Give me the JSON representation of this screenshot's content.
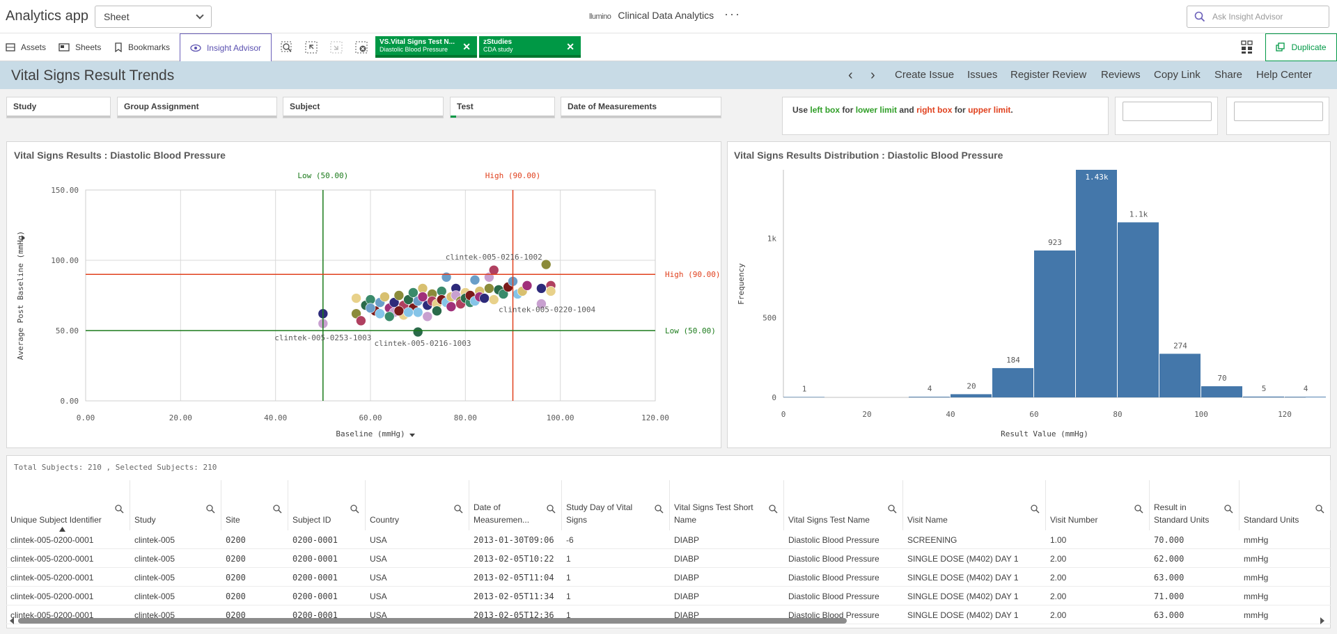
{
  "app": {
    "title": "Analytics app",
    "sheet_select": "Sheet",
    "logo_text": "llumino",
    "center_title": "Clinical Data Analytics",
    "more": "···",
    "ask_placeholder": "Ask Insight Advisor"
  },
  "toolbar": {
    "assets": "Assets",
    "sheets": "Sheets",
    "bookmarks": "Bookmarks",
    "insight_advisor": "Insight Advisor",
    "duplicate": "Duplicate",
    "chips": [
      {
        "title": "VS.Vital Signs Test N...",
        "value": "Diastolic Blood Pressure"
      },
      {
        "title": "zStudies",
        "value": "CDA study"
      }
    ]
  },
  "header": {
    "title": "Vital Signs Result Trends",
    "prev": "‹",
    "next": "›",
    "links": [
      "Create Issue",
      "Issues",
      "Register Review",
      "Reviews",
      "Copy Link",
      "Share",
      "Help Center"
    ]
  },
  "filters": [
    "Study",
    "Group Assignment",
    "Subject",
    "Test",
    "Date of Measurements"
  ],
  "hint": {
    "p1": "Use ",
    "left": "left box",
    "p2": " for ",
    "lower": "lower limit",
    "p3": " and ",
    "right": "right box",
    "p4": " for ",
    "upper": "upper limit",
    "p5": "."
  },
  "scatter": {
    "title": "Vital Signs Results : Diastolic Blood Pressure",
    "xlabel": "Baseline (mmHg)",
    "ylabel": "Average Post Baseline (mmHg)",
    "xticks": [
      "0.00",
      "20.00",
      "40.00",
      "60.00",
      "80.00",
      "100.00",
      "120.00"
    ],
    "yticks": [
      "0.00",
      "50.00",
      "100.00",
      "150.00"
    ],
    "ref_low_v": "Low (50.00)",
    "ref_high_v": "High (90.00)",
    "ref_high_h": "High (90.00)",
    "ref_low_h": "Low (50.00)",
    "annotations": [
      "clintek-005-0216-1002",
      "clintek-005-0220-1004",
      "clintek-005-0253-1003",
      "clintek-005-0216-1003"
    ]
  },
  "histogram": {
    "title": "Vital Signs Results Distribution : Diastolic Blood Pressure",
    "xlabel": "Result Value (mmHg)",
    "ylabel": "Frequency",
    "xticks": [
      "0",
      "20",
      "40",
      "60",
      "80",
      "100",
      "120"
    ],
    "yticks": [
      "0",
      "500",
      "1k"
    ],
    "bar_labels": [
      "1",
      "4",
      "20",
      "184",
      "923",
      "1.43k",
      "1.1k",
      "274",
      "70",
      "5",
      "4"
    ]
  },
  "chart_data": [
    {
      "type": "scatter",
      "title": "Vital Signs Results : Diastolic Blood Pressure",
      "xlabel": "Baseline (mmHg)",
      "ylabel": "Average Post Baseline (mmHg)",
      "xlim": [
        0,
        120
      ],
      "ylim": [
        0,
        150
      ],
      "reference_lines": {
        "x": [
          50,
          90
        ],
        "y": [
          50,
          90
        ]
      },
      "points": [
        [
          50,
          62
        ],
        [
          50,
          55
        ],
        [
          57,
          62
        ],
        [
          58,
          57
        ],
        [
          57,
          73
        ],
        [
          59,
          68
        ],
        [
          60,
          72
        ],
        [
          61,
          64
        ],
        [
          62,
          70
        ],
        [
          62,
          62
        ],
        [
          63,
          74
        ],
        [
          64,
          66
        ],
        [
          65,
          70
        ],
        [
          65,
          63
        ],
        [
          66,
          75
        ],
        [
          67,
          68
        ],
        [
          67,
          61
        ],
        [
          68,
          72
        ],
        [
          69,
          77
        ],
        [
          69,
          66
        ],
        [
          70,
          71
        ],
        [
          70,
          63
        ],
        [
          71,
          80
        ],
        [
          71,
          74
        ],
        [
          72,
          68
        ],
        [
          72,
          60
        ],
        [
          73,
          76
        ],
        [
          73,
          71
        ],
        [
          74,
          69
        ],
        [
          74,
          64
        ],
        [
          75,
          78
        ],
        [
          75,
          72
        ],
        [
          76,
          88
        ],
        [
          76,
          70
        ],
        [
          77,
          74
        ],
        [
          77,
          67
        ],
        [
          78,
          80
        ],
        [
          78,
          75
        ],
        [
          79,
          71
        ],
        [
          79,
          69
        ],
        [
          80,
          77
        ],
        [
          80,
          73
        ],
        [
          81,
          70
        ],
        [
          81,
          75
        ],
        [
          82,
          86
        ],
        [
          82,
          71
        ],
        [
          83,
          78
        ],
        [
          83,
          74
        ],
        [
          84,
          73
        ],
        [
          85,
          88
        ],
        [
          85,
          80
        ],
        [
          86,
          93
        ],
        [
          86,
          72
        ],
        [
          87,
          79
        ],
        [
          88,
          76
        ],
        [
          89,
          81
        ],
        [
          90,
          85
        ],
        [
          91,
          76
        ],
        [
          92,
          78
        ],
        [
          93,
          82
        ],
        [
          96,
          80
        ],
        [
          96,
          69
        ],
        [
          97,
          97
        ],
        [
          98,
          82
        ],
        [
          98,
          78
        ],
        [
          70,
          49
        ],
        [
          64,
          60
        ],
        [
          66,
          64
        ],
        [
          60,
          66
        ],
        [
          68,
          63
        ]
      ]
    },
    {
      "type": "bar",
      "title": "Vital Signs Results Distribution : Diastolic Blood Pressure",
      "xlabel": "Result Value (mmHg)",
      "ylabel": "Frequency",
      "xlim": [
        0,
        120
      ],
      "ylim": [
        0,
        1430
      ],
      "bins": [
        [
          0,
          10
        ],
        [
          30,
          40
        ],
        [
          40,
          50
        ],
        [
          50,
          60
        ],
        [
          60,
          70
        ],
        [
          70,
          80
        ],
        [
          80,
          90
        ],
        [
          90,
          100
        ],
        [
          100,
          110
        ],
        [
          110,
          120
        ],
        [
          120,
          130
        ]
      ],
      "values": [
        1,
        4,
        20,
        184,
        923,
        1430,
        1100,
        274,
        70,
        5,
        4
      ]
    }
  ],
  "table": {
    "summary": "Total Subjects: 210 , Selected Subjects: 210",
    "headers": [
      "Unique Subject Identifier",
      "Study",
      "Site",
      "Subject ID",
      "Country",
      "Date of Measuremen...",
      "Study Day of Vital Signs",
      "Vital Signs Test Short Name",
      "Vital Signs Test Name",
      "Visit Name",
      "Visit Number",
      "Result in Standard Units",
      "Standard Units"
    ],
    "rows": [
      [
        "clintek-005-0200-0001",
        "clintek-005",
        "0200",
        "0200-0001",
        "USA",
        "2013-01-30T09:06",
        "-6",
        "DIABP",
        "Diastolic Blood Pressure",
        "SCREENING",
        "1.00",
        "70.000",
        "mmHg"
      ],
      [
        "clintek-005-0200-0001",
        "clintek-005",
        "0200",
        "0200-0001",
        "USA",
        "2013-02-05T10:22",
        "1",
        "DIABP",
        "Diastolic Blood Pressure",
        "SINGLE DOSE (M402) DAY 1",
        "2.00",
        "62.000",
        "mmHg"
      ],
      [
        "clintek-005-0200-0001",
        "clintek-005",
        "0200",
        "0200-0001",
        "USA",
        "2013-02-05T11:04",
        "1",
        "DIABP",
        "Diastolic Blood Pressure",
        "SINGLE DOSE (M402) DAY 1",
        "2.00",
        "63.000",
        "mmHg"
      ],
      [
        "clintek-005-0200-0001",
        "clintek-005",
        "0200",
        "0200-0001",
        "USA",
        "2013-02-05T11:34",
        "1",
        "DIABP",
        "Diastolic Blood Pressure",
        "SINGLE DOSE (M402) DAY 1",
        "2.00",
        "71.000",
        "mmHg"
      ],
      [
        "clintek-005-0200-0001",
        "clintek-005",
        "0200",
        "0200-0001",
        "USA",
        "2013-02-05T12:36",
        "1",
        "DIABP",
        "Diastolic Blood Pressure",
        "SINGLE DOSE (M402) DAY 1",
        "2.00",
        "63.000",
        "mmHg"
      ]
    ]
  },
  "colors": {
    "accent_green": "#009845",
    "band": "#c8dbe6",
    "bar": "#4477aa",
    "low_line": "#1a7a1a",
    "high_line": "#e0401d",
    "insight": "#5a50b0"
  }
}
